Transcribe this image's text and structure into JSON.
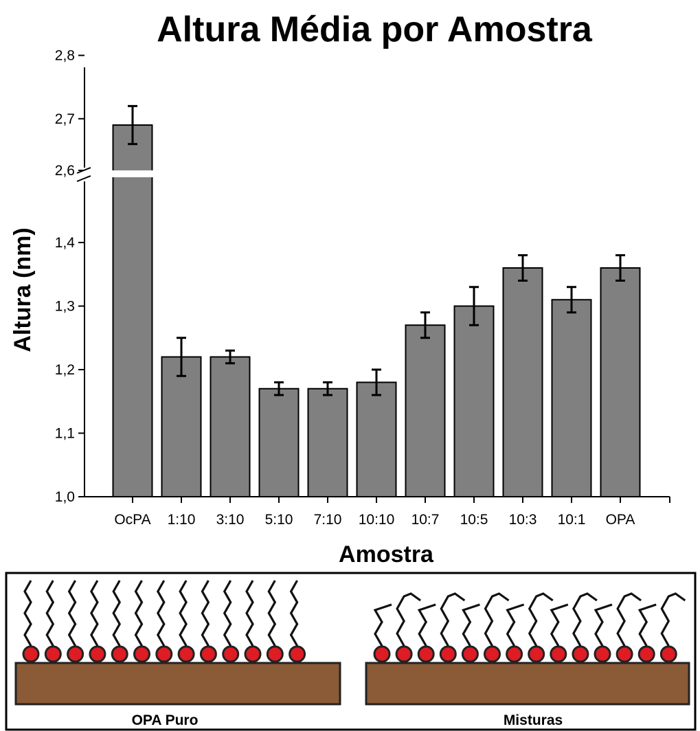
{
  "chart_data": {
    "type": "bar",
    "title": "Altura Média por Amostra",
    "xlabel": "Amostra",
    "ylabel": "Altura (nm)",
    "categories": [
      "OcPA",
      "1:10",
      "3:10",
      "5:10",
      "7:10",
      "10:10",
      "10:7",
      "10:5",
      "10:3",
      "10:1",
      "OPA"
    ],
    "values": [
      2.69,
      1.22,
      1.22,
      1.17,
      1.17,
      1.18,
      1.27,
      1.3,
      1.36,
      1.31,
      1.36
    ],
    "errors": [
      0.03,
      0.03,
      0.01,
      0.01,
      0.01,
      0.02,
      0.02,
      0.03,
      0.02,
      0.02,
      0.02
    ],
    "ylim_lower": [
      1.0,
      1.45
    ],
    "ylim_upper": [
      2.6,
      2.8
    ],
    "y_ticks_lower": [
      "1,0",
      "1,1",
      "1,2",
      "1,3",
      "1,4"
    ],
    "y_ticks_upper": [
      "2,6",
      "2,7",
      "2,8"
    ],
    "axis_break": true,
    "grid": false,
    "colors": {
      "bar": "#808080",
      "bar_edge": "#000000",
      "substrate": "#8b5a36",
      "head": "#dd1c24"
    }
  },
  "schematic": {
    "left_label": "OPA Puro",
    "right_label": "Misturas"
  }
}
